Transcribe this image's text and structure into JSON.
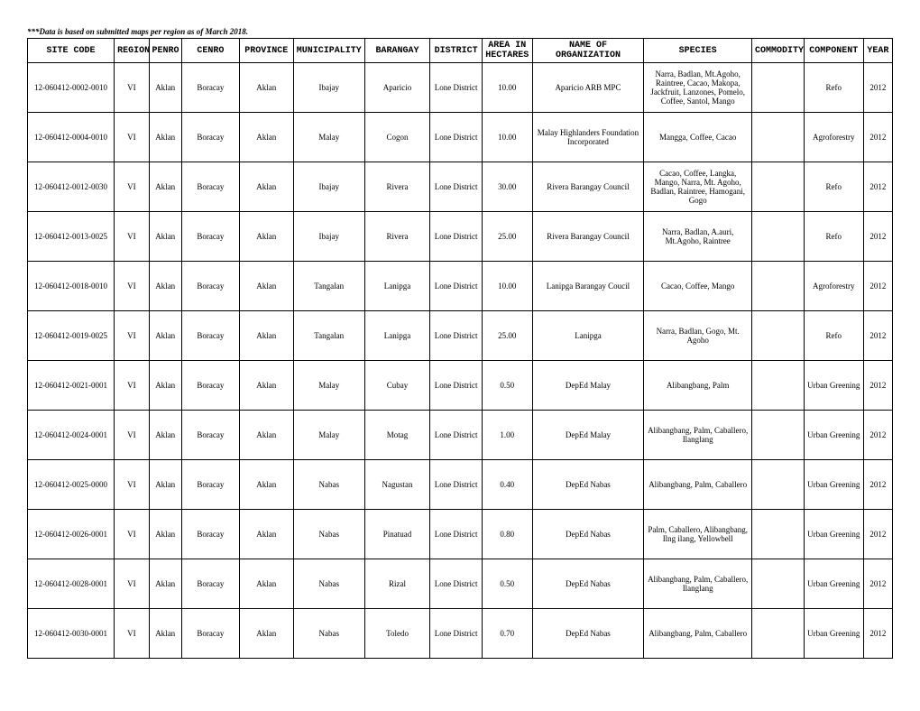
{
  "note": "***Data is based on submitted maps per region as of March 2018.",
  "headers": {
    "site_code": "SITE CODE",
    "region": "REGION",
    "penro": "PENRO",
    "cenro": "CENRO",
    "province": "PROVINCE",
    "municipality": "MUNICIPALITY",
    "barangay": "BARANGAY",
    "district": "DISTRICT",
    "area": "AREA IN HECTARES",
    "org": "NAME OF ORGANIZATION",
    "species": "SPECIES",
    "commodity": "COMMODITY",
    "component": "COMPONENT",
    "year": "YEAR"
  },
  "rows": [
    {
      "site_code": "12-060412-0002-0010",
      "region": "VI",
      "penro": "Aklan",
      "cenro": "Boracay",
      "province": "Aklan",
      "municipality": "Ibajay",
      "barangay": "Aparicio",
      "district": "Lone District",
      "area": "10.00",
      "org": "Aparicio ARB MPC",
      "species": "Narra, Badlan, Mt.Agoho, Raintree, Cacao, Makopa, Jackfruit, Lanzones, Pomelo, Coffee, Santol, Mango",
      "commodity": "",
      "component": "Refo",
      "year": "2012"
    },
    {
      "site_code": "12-060412-0004-0010",
      "region": "VI",
      "penro": "Aklan",
      "cenro": "Boracay",
      "province": "Aklan",
      "municipality": "Malay",
      "barangay": "Cogon",
      "district": "Lone District",
      "area": "10.00",
      "org": "Malay Highlanders Foundation Incorporated",
      "species": "Mangga, Coffee, Cacao",
      "commodity": "",
      "component": "Agroforestry",
      "year": "2012"
    },
    {
      "site_code": "12-060412-0012-0030",
      "region": "VI",
      "penro": "Aklan",
      "cenro": "Boracay",
      "province": "Aklan",
      "municipality": "Ibajay",
      "barangay": "Rivera",
      "district": "Lone District",
      "area": "30.00",
      "org": "Rivera Barangay Council",
      "species": "Cacao, Coffee, Langka, Mango, Narra, Mt. Agoho, Badlan, Raintree, Hamogani, Gogo",
      "commodity": "",
      "component": "Refo",
      "year": "2012"
    },
    {
      "site_code": "12-060412-0013-0025",
      "region": "VI",
      "penro": "Aklan",
      "cenro": "Boracay",
      "province": "Aklan",
      "municipality": "Ibajay",
      "barangay": "Rivera",
      "district": "Lone District",
      "area": "25.00",
      "org": "Rivera Barangay Council",
      "species": "Narra, Badlan, A.auri, Mt.Agoho, Raintree",
      "commodity": "",
      "component": "Refo",
      "year": "2012"
    },
    {
      "site_code": "12-060412-0018-0010",
      "region": "VI",
      "penro": "Aklan",
      "cenro": "Boracay",
      "province": "Aklan",
      "municipality": "Tangalan",
      "barangay": "Lanipga",
      "district": "Lone District",
      "area": "10.00",
      "org": "Lanipga Barangay Coucil",
      "species": "Cacao, Coffee, Mango",
      "commodity": "",
      "component": "Agroforestry",
      "year": "2012"
    },
    {
      "site_code": "12-060412-0019-0025",
      "region": "VI",
      "penro": "Aklan",
      "cenro": "Boracay",
      "province": "Aklan",
      "municipality": "Tangalan",
      "barangay": "Lanipga",
      "district": "Lone District",
      "area": "25.00",
      "org": "Lanipga",
      "species": "Narra, Badlan, Gogo,           Mt. Agoho",
      "commodity": "",
      "component": "Refo",
      "year": "2012"
    },
    {
      "site_code": "12-060412-0021-0001",
      "region": "VI",
      "penro": "Aklan",
      "cenro": "Boracay",
      "province": "Aklan",
      "municipality": "Malay",
      "barangay": "Cubay",
      "district": "Lone District",
      "area": "0.50",
      "org": "DepEd Malay",
      "species": "Alibangbang, Palm",
      "commodity": "",
      "component": "Urban Greening",
      "year": "2012"
    },
    {
      "site_code": "12-060412-0024-0001",
      "region": "VI",
      "penro": "Aklan",
      "cenro": "Boracay",
      "province": "Aklan",
      "municipality": "Malay",
      "barangay": "Motag",
      "district": "Lone District",
      "area": "1.00",
      "org": "DepEd Malay",
      "species": "Alibangbang, Palm, Caballero, Ilanglang",
      "commodity": "",
      "component": "Urban Greening",
      "year": "2012"
    },
    {
      "site_code": "12-060412-0025-0000",
      "region": "VI",
      "penro": "Aklan",
      "cenro": "Boracay",
      "province": "Aklan",
      "municipality": "Nabas",
      "barangay": "Nagustan",
      "district": "Lone District",
      "area": "0.40",
      "org": "DepEd Nabas",
      "species": "Alibangbang, Palm, Caballero",
      "commodity": "",
      "component": "Urban Greening",
      "year": "2012"
    },
    {
      "site_code": "12-060412-0026-0001",
      "region": "VI",
      "penro": "Aklan",
      "cenro": "Boracay",
      "province": "Aklan",
      "municipality": "Nabas",
      "barangay": "Pinatuad",
      "district": "Lone District",
      "area": "0.80",
      "org": "DepEd Nabas",
      "species": "Palm, Caballero, Alibangbang, Ilng ilang, Yellowbell",
      "commodity": "",
      "component": "Urban Greening",
      "year": "2012"
    },
    {
      "site_code": "12-060412-0028-0001",
      "region": "VI",
      "penro": "Aklan",
      "cenro": "Boracay",
      "province": "Aklan",
      "municipality": "Nabas",
      "barangay": "Rizal",
      "district": "Lone District",
      "area": "0.50",
      "org": "DepEd Nabas",
      "species": "Alibangbang, Palm, Caballero, Ilanglang",
      "commodity": "",
      "component": "Urban Greening",
      "year": "2012"
    },
    {
      "site_code": "12-060412-0030-0001",
      "region": "VI",
      "penro": "Aklan",
      "cenro": "Boracay",
      "province": "Aklan",
      "municipality": "Nabas",
      "barangay": "Toledo",
      "district": "Lone District",
      "area": "0.70",
      "org": "DepEd Nabas",
      "species": "Alibangbang, Palm, Caballero",
      "commodity": "",
      "component": "Urban Greening",
      "year": "2012"
    }
  ]
}
